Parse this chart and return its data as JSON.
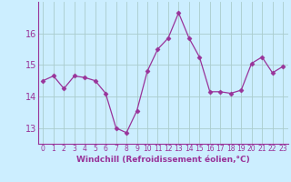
{
  "x": [
    0,
    1,
    2,
    3,
    4,
    5,
    6,
    7,
    8,
    9,
    10,
    11,
    12,
    13,
    14,
    15,
    16,
    17,
    18,
    19,
    20,
    21,
    22,
    23
  ],
  "y": [
    14.5,
    14.65,
    14.25,
    14.65,
    14.6,
    14.5,
    14.1,
    13.0,
    12.85,
    13.55,
    14.8,
    15.5,
    15.85,
    16.65,
    15.85,
    15.25,
    14.15,
    14.15,
    14.1,
    14.2,
    15.05,
    15.25,
    14.75,
    14.95
  ],
  "line_color": "#993399",
  "marker": "D",
  "marker_size": 2.5,
  "bg_color": "#cceeff",
  "grid_color": "#aacccc",
  "xlabel": "Windchill (Refroidissement éolien,°C)",
  "xlabel_color": "#993399",
  "tick_color": "#993399",
  "spine_color": "#993399",
  "ylim": [
    12.5,
    17.0
  ],
  "yticks": [
    13,
    14,
    15,
    16
  ],
  "xlim": [
    -0.5,
    23.5
  ],
  "xticks": [
    0,
    1,
    2,
    3,
    4,
    5,
    6,
    7,
    8,
    9,
    10,
    11,
    12,
    13,
    14,
    15,
    16,
    17,
    18,
    19,
    20,
    21,
    22,
    23
  ],
  "xtick_fontsize": 5.5,
  "ytick_fontsize": 7.0,
  "xlabel_fontsize": 6.5
}
